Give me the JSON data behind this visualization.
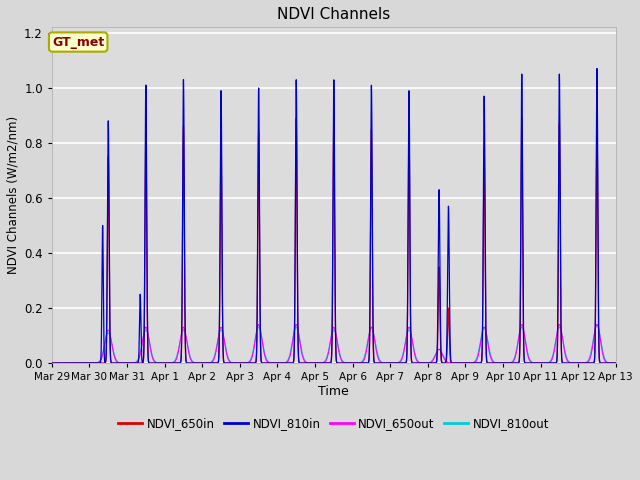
{
  "title": "NDVI Channels",
  "xlabel": "Time",
  "ylabel": "NDVI Channels (W/m2/nm)",
  "legend_label": "GT_met",
  "series": [
    "NDVI_650in",
    "NDVI_810in",
    "NDVI_650out",
    "NDVI_810out"
  ],
  "colors": [
    "#dd0000",
    "#0000cc",
    "#ff00ff",
    "#00ccdd"
  ],
  "background_color": "#d8d8d8",
  "plot_bg": "#dcdcdc",
  "ylim": [
    0.0,
    1.22
  ],
  "yticks": [
    0.0,
    0.2,
    0.4,
    0.6,
    0.8,
    1.0,
    1.2
  ],
  "xtick_labels": [
    "Mar 29",
    "Mar 30",
    "Mar 31",
    "Apr 1",
    "Apr 2",
    "Apr 3",
    "Apr 4",
    "Apr 5",
    "Apr 6",
    "Apr 7",
    "Apr 8",
    "Apr 9",
    "Apr 10",
    "Apr 11",
    "Apr 12",
    "Apr 13"
  ],
  "n_days": 15,
  "points_per_day": 500
}
